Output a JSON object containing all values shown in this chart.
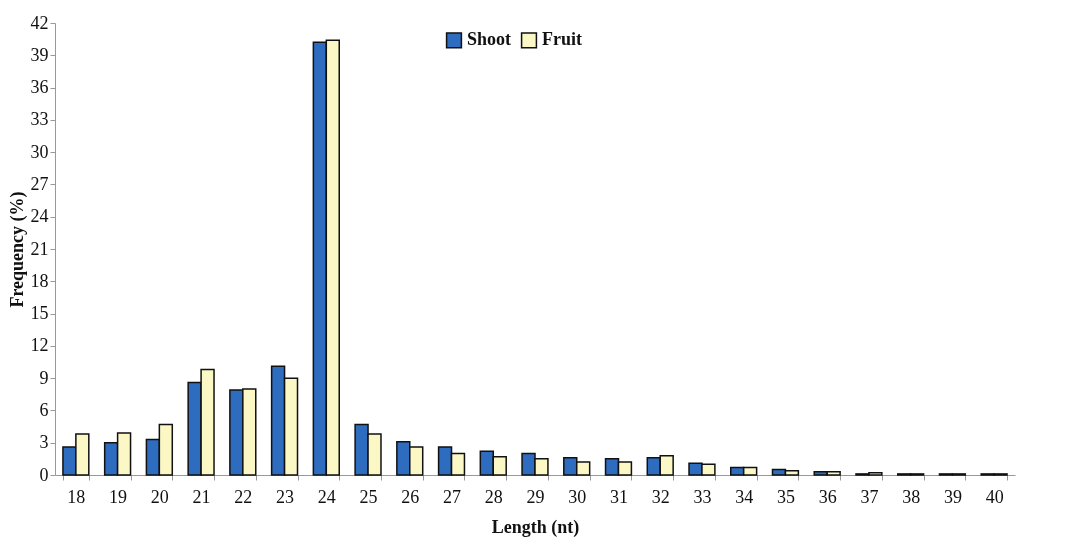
{
  "chart_data": {
    "type": "bar",
    "xlabel": "Length (nt)",
    "ylabel": "Frequency (%)",
    "categories": [
      "18",
      "19",
      "20",
      "21",
      "22",
      "23",
      "24",
      "25",
      "26",
      "27",
      "28",
      "29",
      "30",
      "31",
      "32",
      "33",
      "34",
      "35",
      "36",
      "37",
      "38",
      "39",
      "40"
    ],
    "series": [
      {
        "name": "Shoot",
        "color": "#2e6cc0",
        "values": [
          2.6,
          3.0,
          3.3,
          8.6,
          7.9,
          10.1,
          40.2,
          4.7,
          3.1,
          2.6,
          2.2,
          2.0,
          1.6,
          1.5,
          1.6,
          1.1,
          0.7,
          0.5,
          0.3,
          0.1,
          0.1,
          0.1,
          0.1
        ]
      },
      {
        "name": "Fruit",
        "color": "#fbf8c6",
        "values": [
          3.8,
          3.9,
          4.7,
          9.8,
          8.0,
          9.0,
          40.4,
          3.8,
          2.6,
          2.0,
          1.7,
          1.5,
          1.2,
          1.2,
          1.8,
          1.0,
          0.7,
          0.4,
          0.3,
          0.2,
          0.1,
          0.1,
          0.1
        ]
      }
    ],
    "ylim": [
      0,
      42
    ],
    "yticks": [
      0,
      3,
      6,
      9,
      12,
      15,
      18,
      21,
      24,
      27,
      30,
      33,
      36,
      39,
      42
    ],
    "grid": false,
    "legend": "top"
  }
}
